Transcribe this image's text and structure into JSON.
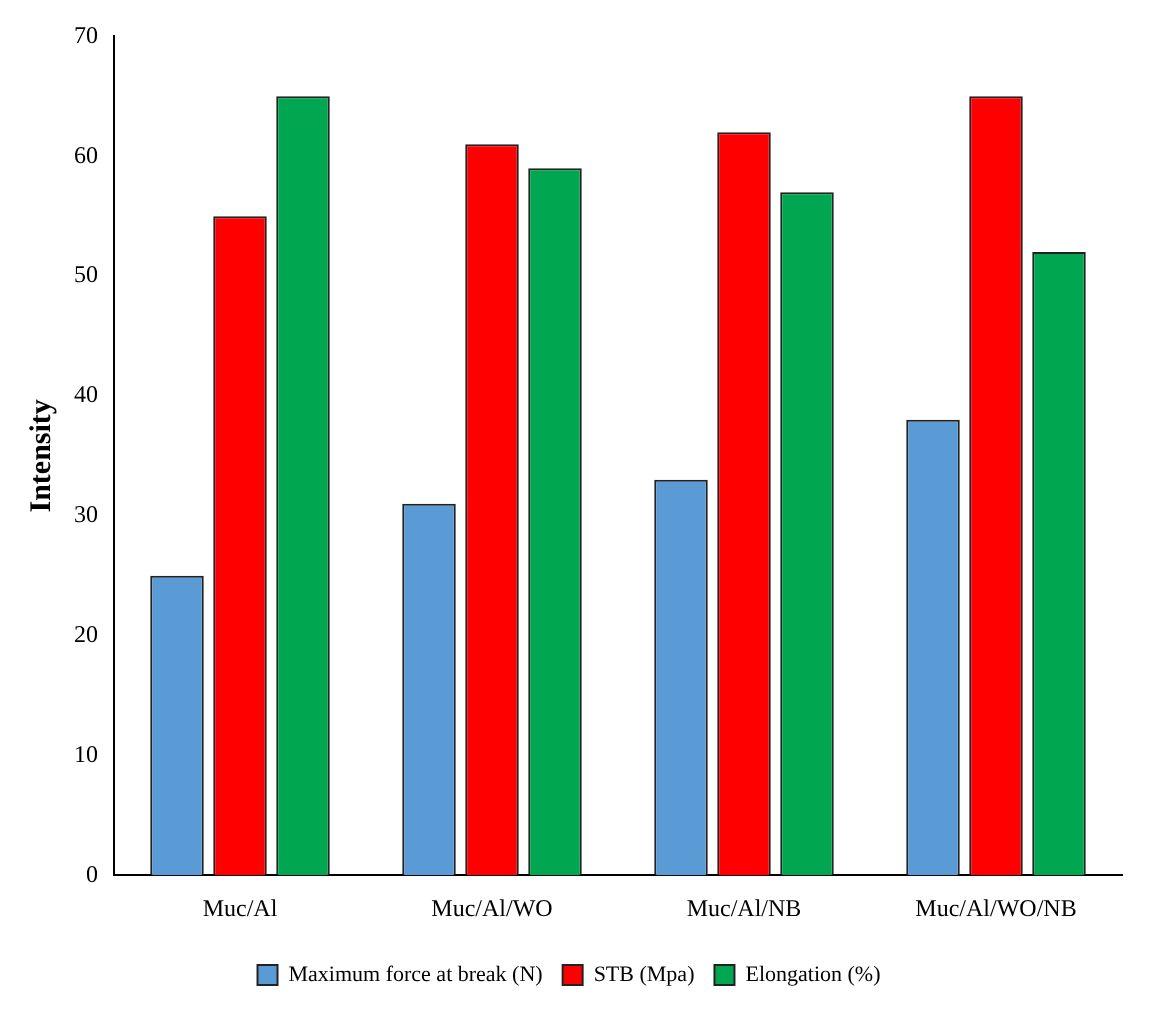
{
  "chart_data": {
    "type": "bar",
    "ylabel": "Intensity",
    "categories": [
      "Muc/Al",
      "Muc/Al/WO",
      "Muc/Al/NB",
      "Muc/Al/WO/NB"
    ],
    "series": [
      {
        "name": "Maximum force at break (N)",
        "color": "#5b9bd5",
        "values": [
          25,
          31,
          33,
          38
        ]
      },
      {
        "name": "STB (Mpa)",
        "color": "#ff0000",
        "values": [
          55,
          61,
          62,
          65
        ]
      },
      {
        "name": "Elongation (%)",
        "color": "#00a650",
        "values": [
          65,
          59,
          57,
          52
        ]
      }
    ],
    "ylim": [
      0,
      70
    ],
    "yticks": [
      0,
      10,
      20,
      30,
      40,
      50,
      60,
      70
    ],
    "grid": false,
    "legend": "bottom"
  }
}
